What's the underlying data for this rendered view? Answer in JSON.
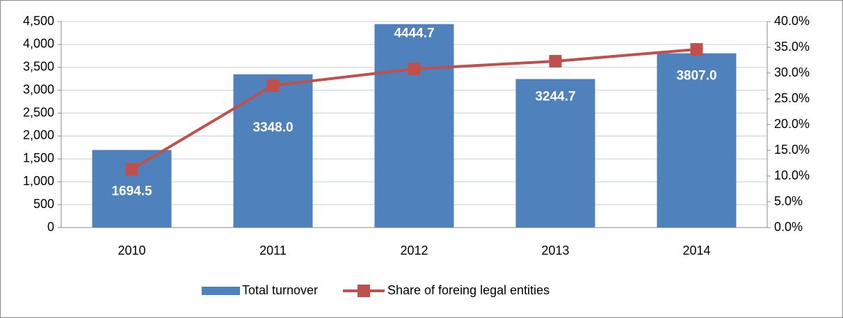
{
  "chart_data": {
    "type": "bar_line",
    "categories": [
      "2010",
      "2011",
      "2012",
      "2013",
      "2014"
    ],
    "series": [
      {
        "name": "Total turnover",
        "type": "bar",
        "color": "#4f81bd",
        "values": [
          1694.5,
          3348.0,
          4444.7,
          3244.7,
          3807.0
        ],
        "value_labels": [
          "1694.5",
          "3348.0",
          "4444.7",
          "3244.7",
          "3807.0"
        ]
      },
      {
        "name": "Share of foreing legal entities",
        "type": "line",
        "axis": "y2",
        "color": "#c0504d",
        "values": [
          11.3,
          27.6,
          30.8,
          32.3,
          34.6
        ]
      }
    ],
    "ylim": [
      0,
      4500
    ],
    "yticks": [
      0,
      500,
      {
        "value": 1000,
        "label": "1,000"
      },
      {
        "value": 1500,
        "label": "1,500"
      },
      {
        "value": 2000,
        "label": "2,000"
      },
      {
        "value": 2500,
        "label": "2,500"
      },
      {
        "value": 3000,
        "label": "3,000"
      },
      {
        "value": 3500,
        "label": "3,500"
      },
      {
        "value": 4000,
        "label": "4,000"
      },
      {
        "value": 4500,
        "label": "4,500"
      }
    ],
    "y2lim": [
      0,
      40
    ],
    "y2ticks": [
      {
        "value": 0,
        "label": "0.0%"
      },
      {
        "value": 5,
        "label": "5.0%"
      },
      {
        "value": 10,
        "label": "10.0%"
      },
      {
        "value": 15,
        "label": "15.0%"
      },
      {
        "value": 20,
        "label": "20.0%"
      },
      {
        "value": 25,
        "label": "25.0%"
      },
      {
        "value": 30,
        "label": "30.0%"
      },
      {
        "value": 35,
        "label": "35.0%"
      },
      {
        "value": 40,
        "label": "40.0%"
      }
    ],
    "grid": true,
    "legend": "bottom"
  }
}
